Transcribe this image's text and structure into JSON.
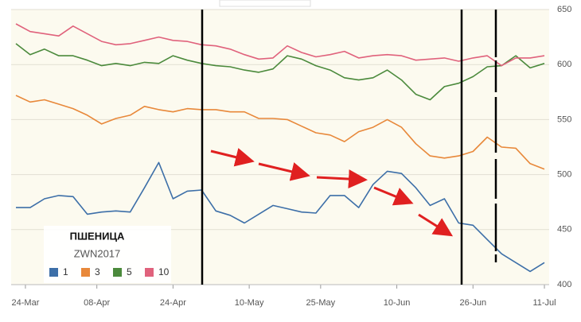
{
  "chart_data": {
    "type": "line",
    "legend_title": "ПШЕНИЦА",
    "legend_subtitle": "ZWN2017",
    "x": [
      "22-Mar",
      "25-Mar",
      "28-Mar",
      "31-Mar",
      "03-Apr",
      "06-Apr",
      "09-Apr",
      "12-Apr",
      "15-Apr",
      "18-Apr",
      "21-Apr",
      "24-Apr",
      "27-Apr",
      "30-Apr",
      "03-May",
      "06-May",
      "09-May",
      "12-May",
      "15-May",
      "18-May",
      "21-May",
      "24-May",
      "27-May",
      "30-May",
      "02-Jun",
      "05-Jun",
      "08-Jun",
      "11-Jun",
      "14-Jun",
      "17-Jun",
      "20-Jun",
      "23-Jun",
      "26-Jun",
      "29-Jun",
      "02-Jul",
      "05-Jul",
      "08-Jul",
      "11-Jul"
    ],
    "xlim": [
      "21-Mar",
      "12-Jul"
    ],
    "xticks": [
      "24-Mar",
      "08-Apr",
      "24-Apr",
      "10-May",
      "25-May",
      "10-Jun",
      "26-Jun",
      "11-Jul"
    ],
    "ylim": [
      400,
      650
    ],
    "yticks": [
      400,
      450,
      500,
      550,
      600,
      650
    ],
    "grid": true,
    "series": [
      {
        "name": "1",
        "color": "#3d6fa8",
        "values": [
          470,
          470,
          478,
          481,
          480,
          464,
          466,
          467,
          466,
          488,
          511,
          478,
          485,
          486,
          467,
          463,
          456,
          464,
          472,
          469,
          466,
          465,
          481,
          481,
          470,
          491,
          503,
          501,
          488,
          472,
          478,
          456,
          454,
          441,
          428,
          420,
          412,
          420
        ]
      },
      {
        "name": "3",
        "color": "#e8883a",
        "values": [
          572,
          566,
          568,
          564,
          560,
          554,
          546,
          551,
          554,
          562,
          559,
          557,
          560,
          559,
          559,
          557,
          557,
          551,
          551,
          550,
          544,
          538,
          536,
          530,
          539,
          543,
          550,
          543,
          528,
          517,
          515,
          517,
          521,
          534,
          525,
          524,
          510,
          505
        ]
      },
      {
        "name": "5",
        "color": "#4b8a3c",
        "values": [
          619,
          609,
          614,
          608,
          608,
          604,
          599,
          601,
          599,
          602,
          601,
          608,
          604,
          601,
          599,
          598,
          595,
          593,
          596,
          608,
          605,
          599,
          595,
          588,
          586,
          588,
          595,
          586,
          573,
          568,
          580,
          583,
          589,
          598,
          599,
          608,
          597,
          601
        ]
      },
      {
        "name": "10",
        "color": "#e0627c",
        "values": [
          637,
          630,
          628,
          626,
          635,
          628,
          621,
          618,
          619,
          622,
          625,
          622,
          621,
          618,
          617,
          614,
          609,
          605,
          606,
          617,
          611,
          607,
          609,
          612,
          606,
          608,
          609,
          608,
          604,
          605,
          606,
          603,
          606,
          608,
          599,
          606,
          606,
          608
        ]
      }
    ]
  }
}
